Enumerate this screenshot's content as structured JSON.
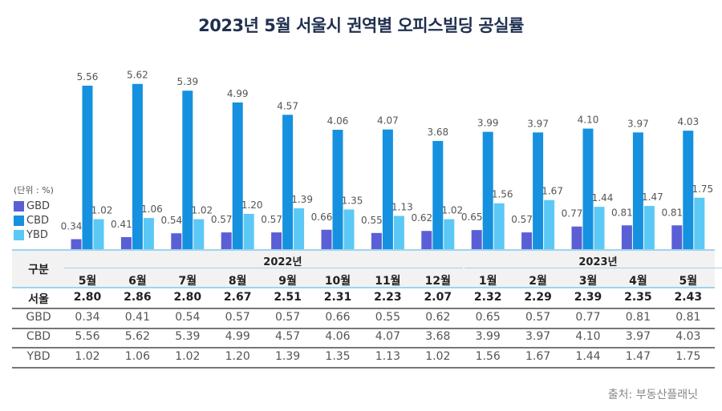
{
  "title": "2023년 5월 서울시 권역별 오피스빌딩 공실률",
  "unit_label": "(단위 : %)",
  "source": "출처: 부동산플래닛",
  "colors": {
    "GBD": "#5b5fd6",
    "CBD": "#1591df",
    "YBD": "#5cc8f5"
  },
  "chart_data": {
    "type": "bar",
    "title": "2023년 5월 서울시 권역별 오피스빌딩 공실률",
    "categories": [
      "5월",
      "6월",
      "7월",
      "8월",
      "9월",
      "10월",
      "11월",
      "12월",
      "1월",
      "2월",
      "3월",
      "4월",
      "5월"
    ],
    "year_groups": [
      {
        "label": "2022년",
        "span": 8
      },
      {
        "label": "2023년",
        "span": 5
      }
    ],
    "series": [
      {
        "name": "GBD",
        "values": [
          0.34,
          0.41,
          0.54,
          0.57,
          0.57,
          0.66,
          0.55,
          0.62,
          0.65,
          0.57,
          0.77,
          0.81,
          0.81
        ]
      },
      {
        "name": "CBD",
        "values": [
          5.56,
          5.62,
          5.39,
          4.99,
          4.57,
          4.06,
          4.07,
          3.68,
          3.99,
          3.97,
          4.1,
          3.97,
          4.03
        ]
      },
      {
        "name": "YBD",
        "values": [
          1.02,
          1.06,
          1.02,
          1.2,
          1.39,
          1.35,
          1.13,
          1.02,
          1.56,
          1.67,
          1.44,
          1.47,
          1.75
        ]
      }
    ],
    "legend": "left",
    "grid": false
  },
  "table": {
    "header_label": "구분",
    "rows": [
      {
        "label": "서울",
        "values": [
          "2.80",
          "2.86",
          "2.80",
          "2.67",
          "2.51",
          "2.31",
          "2.23",
          "2.07",
          "2.32",
          "2.29",
          "2.39",
          "2.35",
          "2.43"
        ],
        "bold": true
      },
      {
        "label": "GBD",
        "values": [
          "0.34",
          "0.41",
          "0.54",
          "0.57",
          "0.57",
          "0.66",
          "0.55",
          "0.62",
          "0.65",
          "0.57",
          "0.77",
          "0.81",
          "0.81"
        ]
      },
      {
        "label": "CBD",
        "values": [
          "5.56",
          "5.62",
          "5.39",
          "4.99",
          "4.57",
          "4.06",
          "4.07",
          "3.68",
          "3.99",
          "3.97",
          "4.10",
          "3.97",
          "4.03"
        ]
      },
      {
        "label": "YBD",
        "values": [
          "1.02",
          "1.06",
          "1.02",
          "1.20",
          "1.39",
          "1.35",
          "1.13",
          "1.02",
          "1.56",
          "1.67",
          "1.44",
          "1.47",
          "1.75"
        ]
      }
    ]
  }
}
